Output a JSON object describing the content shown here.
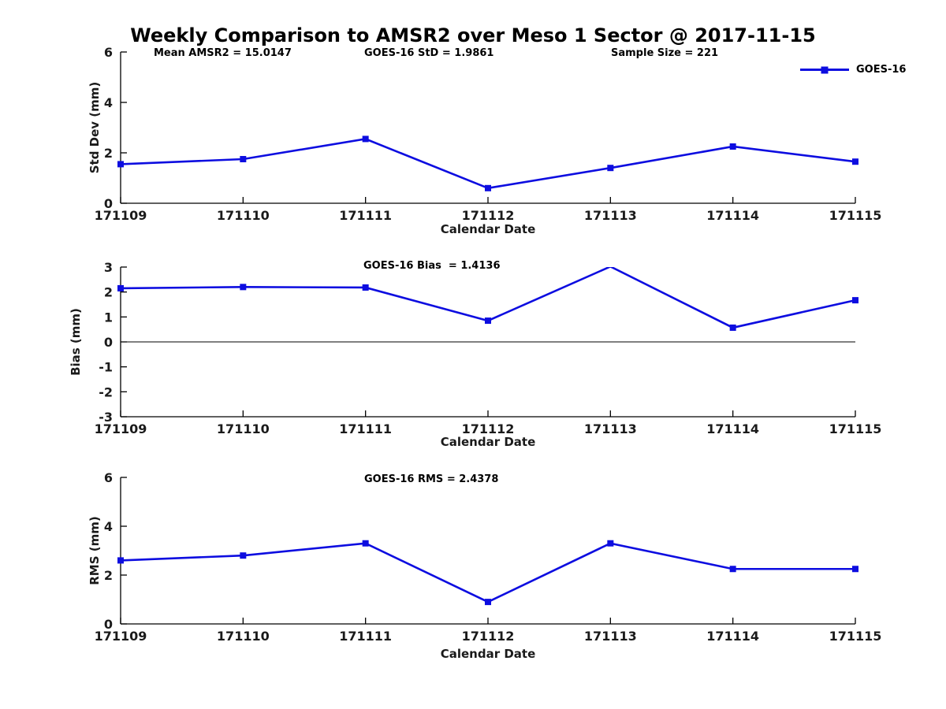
{
  "header": {
    "title": "Weekly Comparison to AMSR2 over Meso 1 Sector @ 2017-11-15"
  },
  "legend": {
    "label": "GOES-16",
    "color": "#0d0de0",
    "position": "northeast-above-axes"
  },
  "chart_data": [
    {
      "type": "line",
      "title": "",
      "annotations": [
        {
          "text": "Mean AMSR2 = 15.0147"
        },
        {
          "text": "GOES-16 StD = 1.9861"
        },
        {
          "text": "Sample Size = 221"
        }
      ],
      "categories": [
        "171109",
        "171110",
        "171111",
        "171112",
        "171113",
        "171114",
        "171115"
      ],
      "series": [
        {
          "name": "GOES-16",
          "color": "#0d0de0",
          "marker": "square",
          "values": [
            1.55,
            1.75,
            2.55,
            0.6,
            1.4,
            2.25,
            1.65
          ]
        }
      ],
      "xlabel": "Calendar Date",
      "ylabel": "Std Dev (mm)",
      "ylim": [
        0,
        6
      ],
      "yticks": [
        0,
        2,
        4,
        6
      ],
      "zero_line": false,
      "grid": false,
      "legend_position": "northeast"
    },
    {
      "type": "line",
      "title": "",
      "annotations": [
        {
          "text": "GOES-16 Bias  = 1.4136"
        }
      ],
      "categories": [
        "171109",
        "171110",
        "171111",
        "171112",
        "171113",
        "171114",
        "171115"
      ],
      "series": [
        {
          "name": "GOES-16",
          "color": "#0d0de0",
          "marker": "square",
          "values": [
            2.15,
            2.2,
            2.18,
            0.85,
            3.02,
            0.57,
            1.67
          ]
        }
      ],
      "xlabel": "Calendar Date",
      "ylabel": "Bias (mm)",
      "ylim": [
        -3,
        3
      ],
      "yticks": [
        3,
        2,
        1,
        0,
        -1,
        -2,
        -3
      ],
      "zero_line": true,
      "grid": false,
      "legend_position": "none"
    },
    {
      "type": "line",
      "title": "",
      "annotations": [
        {
          "text": "GOES-16 RMS = 2.4378"
        }
      ],
      "categories": [
        "171109",
        "171110",
        "171111",
        "171112",
        "171113",
        "171114",
        "171115"
      ],
      "series": [
        {
          "name": "GOES-16",
          "color": "#0d0de0",
          "marker": "square",
          "values": [
            2.6,
            2.8,
            3.3,
            0.9,
            3.3,
            2.25,
            2.25
          ]
        }
      ],
      "xlabel": "Calendar Date",
      "ylabel": "RMS (mm)",
      "ylim": [
        0,
        6
      ],
      "yticks": [
        0,
        2,
        4,
        6
      ],
      "zero_line": false,
      "grid": false,
      "legend_position": "none"
    }
  ]
}
